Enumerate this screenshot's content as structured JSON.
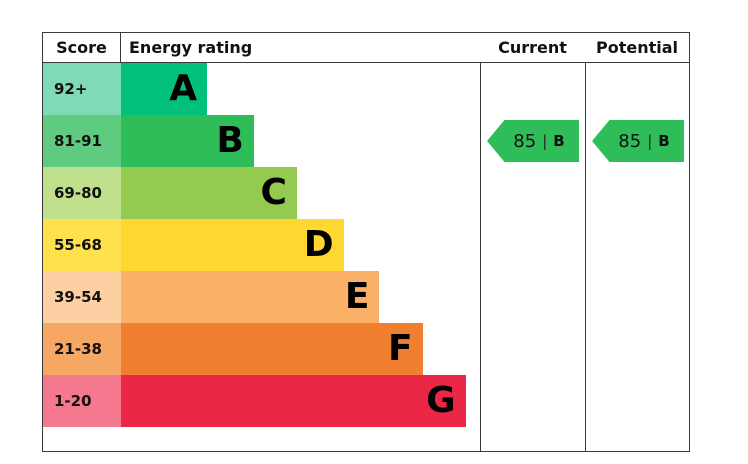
{
  "header": {
    "score": "Score",
    "energy_rating": "Energy rating",
    "current": "Current",
    "potential": "Potential"
  },
  "bands": [
    {
      "letter": "A",
      "score": "92+",
      "color": "#00c07a",
      "tint": "#7fdab5",
      "width_pct": 24
    },
    {
      "letter": "B",
      "score": "81-91",
      "color": "#2ebd59",
      "tint": "#5ecb80",
      "width_pct": 37
    },
    {
      "letter": "C",
      "score": "69-80",
      "color": "#94ca4f",
      "tint": "#c0e08b",
      "width_pct": 49
    },
    {
      "letter": "D",
      "score": "55-68",
      "color": "#ffd733",
      "tint": "#ffe14d",
      "width_pct": 62
    },
    {
      "letter": "E",
      "score": "39-54",
      "color": "#fbb068",
      "tint": "#fdd0a3",
      "width_pct": 72
    },
    {
      "letter": "F",
      "score": "21-38",
      "color": "#f08030",
      "tint": "#f5a763",
      "width_pct": 84
    },
    {
      "letter": "G",
      "score": "1-20",
      "color": "#ea2746",
      "tint": "#f4798f",
      "width_pct": 96
    }
  ],
  "current": {
    "value": "85",
    "separator": "|",
    "letter": "B",
    "color": "#2ebd59"
  },
  "potential": {
    "value": "85",
    "separator": "|",
    "letter": "B",
    "color": "#2ebd59"
  },
  "chart_data": {
    "type": "bar",
    "title": "Energy rating (EPC bands)",
    "categories": [
      "A",
      "B",
      "C",
      "D",
      "E",
      "F",
      "G"
    ],
    "score_ranges": [
      "92+",
      "81-91",
      "69-80",
      "55-68",
      "39-54",
      "21-38",
      "1-20"
    ],
    "values": [
      24,
      37,
      49,
      62,
      72,
      84,
      96
    ],
    "value_unit": "relative bar width, percent of rating column",
    "band_colors": [
      "#00c07a",
      "#2ebd59",
      "#94ca4f",
      "#ffd733",
      "#fbb068",
      "#f08030",
      "#ea2746"
    ],
    "markers": [
      {
        "name": "Current",
        "value": 85,
        "band": "B"
      },
      {
        "name": "Potential",
        "value": 85,
        "band": "B"
      }
    ],
    "legend_position": "none",
    "grid": false
  }
}
